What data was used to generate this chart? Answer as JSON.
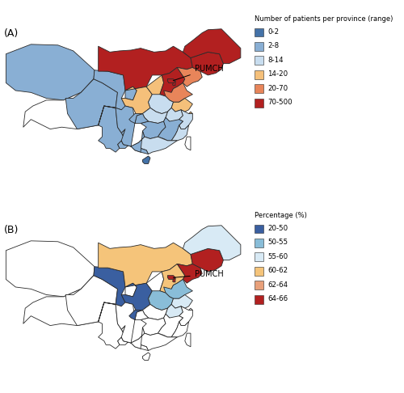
{
  "panel_A": {
    "title": "(A)",
    "legend_title": "Number of patients per province (range)",
    "legend_labels": [
      "0-2",
      "2-8",
      "8-14",
      "14-20",
      "20-70",
      "70-500"
    ],
    "legend_colors": [
      "#4472a8",
      "#89afd4",
      "#c8ddef",
      "#f5c07a",
      "#e8855a",
      "#b22020"
    ],
    "province_colors": {
      "Heilongjiang": "#b22020",
      "Jilin": "#b22020",
      "Liaoning": "#e8855a",
      "InnerMongolia": "#b22020",
      "Beijing": "#b22020",
      "Tianjin": "#b22020",
      "Hebei": "#b22020",
      "Shanxi": "#f5c07a",
      "Shandong": "#e8855a",
      "Henan": "#c8ddef",
      "Shaanxi": "#f5c07a",
      "Gansu": "#89afd4",
      "Ningxia": "#89afd4",
      "Qinghai": "#89afd4",
      "Xinjiang": "#89afd4",
      "Tibet": "#ffffff",
      "Sichuan": "#89afd4",
      "Chongqing": "#89afd4",
      "Yunnan": "#89afd4",
      "Guizhou": "#89afd4",
      "Guangxi": "#89afd4",
      "Guangdong": "#c8ddef",
      "Fujian": "#c8ddef",
      "Zhejiang": "#c8ddef",
      "Jiangxi": "#89afd4",
      "Hunan": "#89afd4",
      "Hubei": "#c8ddef",
      "Anhui": "#c8ddef",
      "Jiangsu": "#f5c07a",
      "Shanghai": "#f5c07a",
      "Hainan": "#4472a8"
    }
  },
  "panel_B": {
    "title": "(B)",
    "legend_title": "Percentage (%)",
    "legend_labels": [
      "20-50",
      "50-55",
      "55-60",
      "60-62",
      "62-64",
      "64-66"
    ],
    "legend_colors": [
      "#3a5fa0",
      "#89bdd8",
      "#d8eaf5",
      "#f5c47a",
      "#e8a07a",
      "#b22020"
    ],
    "province_colors": {
      "Heilongjiang": "#d8eaf5",
      "Jilin": "#b22020",
      "Liaoning": "#b22020",
      "InnerMongolia": "#f5c47a",
      "Beijing": "#b22020",
      "Tianjin": "#b22020",
      "Hebei": "#f5c47a",
      "Shanxi": "#ffffff",
      "Shandong": "#89bdd8",
      "Henan": "#89bdd8",
      "Shaanxi": "#3a5fa0",
      "Gansu": "#3a5fa0",
      "Ningxia": "#ffffff",
      "Qinghai": "#ffffff",
      "Xinjiang": "#ffffff",
      "Tibet": "#ffffff",
      "Sichuan": "#ffffff",
      "Chongqing": "#3a5fa0",
      "Yunnan": "#ffffff",
      "Guizhou": "#ffffff",
      "Guangxi": "#ffffff",
      "Guangdong": "#ffffff",
      "Fujian": "#ffffff",
      "Zhejiang": "#ffffff",
      "Jiangxi": "#ffffff",
      "Hunan": "#ffffff",
      "Hubei": "#ffffff",
      "Anhui": "#d8eaf5",
      "Jiangsu": "#d8eaf5",
      "Shanghai": "#ffffff",
      "Hainan": "#ffffff"
    }
  },
  "edge_color": "#2a2a2a",
  "edge_linewidth": 0.6,
  "background_color": "#ffffff",
  "fig_width": 5.0,
  "fig_height": 4.86,
  "pumch_text": "PUMCH",
  "pumch_lon": 116.4,
  "pumch_lat": 39.9,
  "pumch_textA_lon": 127.5,
  "pumch_textA_lat": 43.5,
  "pumch_textB_lon": 127.5,
  "pumch_textB_lat": 40.5,
  "map_xlim": [
    73,
    136
  ],
  "map_ylim": [
    17,
    54
  ]
}
